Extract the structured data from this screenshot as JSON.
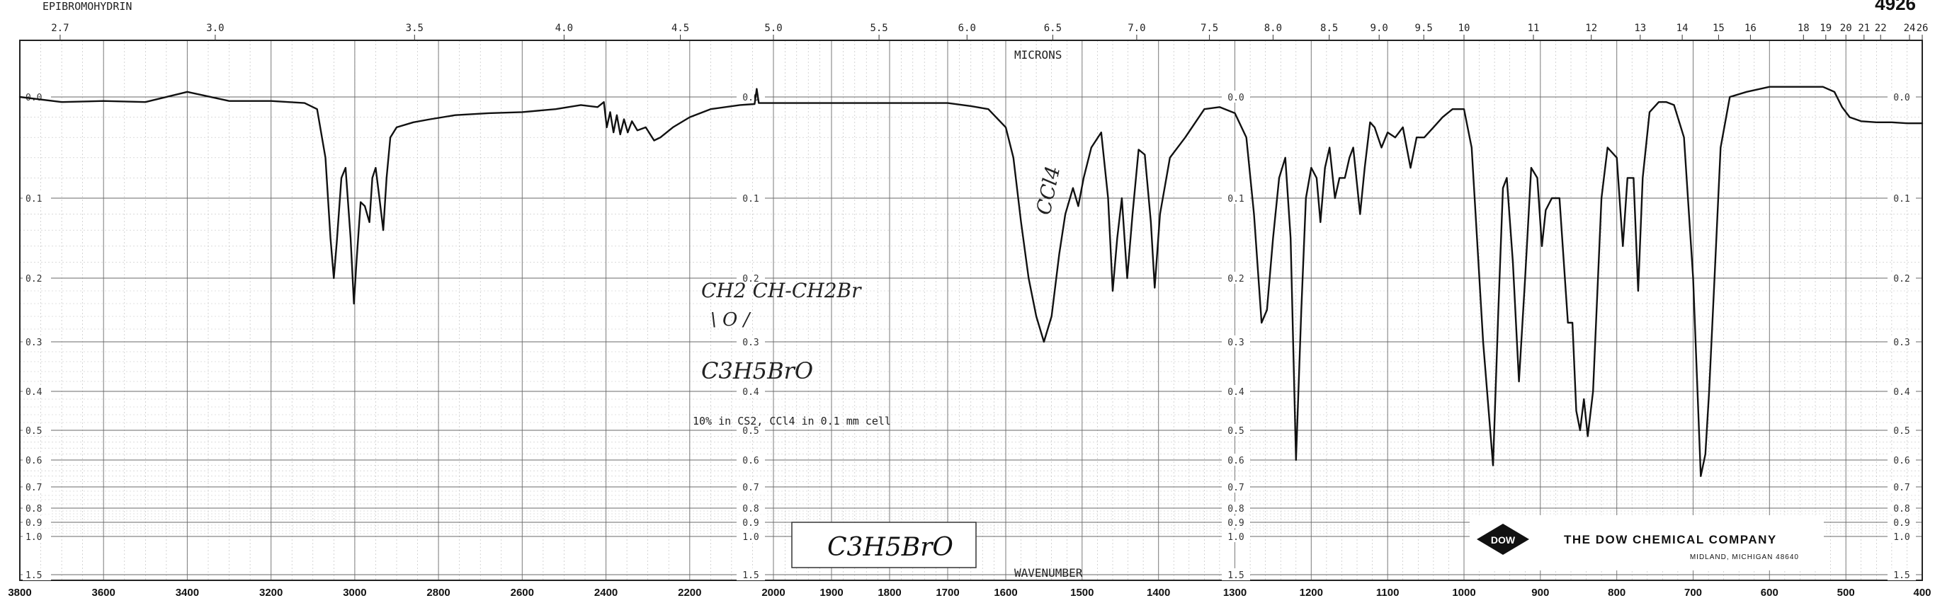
{
  "header": {
    "compound_title": "EPIBROMOHYDRIN",
    "spectrum_number": "4926"
  },
  "chart_data": {
    "type": "line",
    "title": "EPIBROMOHYDRIN",
    "xlabel": "WAVENUMBER",
    "x2label": "MICRONS",
    "ylabel": "",
    "x_axis_type": "wavenumber",
    "x_segments": [
      [
        3800,
        2000
      ],
      [
        2000,
        1600
      ],
      [
        1600,
        400
      ]
    ],
    "xlim": [
      3800,
      400
    ],
    "ylim": [
      0.0,
      1.5
    ],
    "y_scale": "absorbance (non-linear chart scale)",
    "grid": true,
    "wavenumber_ticks": [
      "3800",
      "3600",
      "3400",
      "3200",
      "3000",
      "2800",
      "2600",
      "2400",
      "2200",
      "2000",
      "1900",
      "1800",
      "1700",
      "1600",
      "1500",
      "1400",
      "1300",
      "1200",
      "1100",
      "1000",
      "900",
      "800",
      "700",
      "600",
      "500",
      "400"
    ],
    "micron_ticks": [
      "2.7",
      "3.0",
      "3.5",
      "4.0",
      "4.5",
      "5.0",
      "5.5",
      "6.0",
      "6.5",
      "7.0",
      "7.5",
      "8.0",
      "8.5",
      "9.0",
      "9.5",
      "10",
      "11",
      "12",
      "13",
      "14",
      "15",
      "16",
      "18",
      "19",
      "20",
      "21",
      "22",
      "24",
      "26"
    ],
    "absorbance_ticks": [
      "0.0",
      "0.1",
      "0.2",
      "0.3",
      "0.4",
      "0.5",
      "0.6",
      "0.7",
      "0.8",
      "0.9",
      "1.0",
      "1.5"
    ],
    "series": [
      {
        "color": "#111111",
        "points": [
          [
            3800,
            0.0
          ],
          [
            3700,
            0.005
          ],
          [
            3600,
            0.004
          ],
          [
            3500,
            0.005
          ],
          [
            3400,
            -0.005
          ],
          [
            3300,
            0.004
          ],
          [
            3200,
            0.004
          ],
          [
            3120,
            0.006
          ],
          [
            3090,
            0.012
          ],
          [
            3070,
            0.06
          ],
          [
            3058,
            0.15
          ],
          [
            3050,
            0.2
          ],
          [
            3043,
            0.155
          ],
          [
            3032,
            0.08
          ],
          [
            3022,
            0.07
          ],
          [
            3010,
            0.15
          ],
          [
            3002,
            0.24
          ],
          [
            2996,
            0.18
          ],
          [
            2986,
            0.105
          ],
          [
            2976,
            0.11
          ],
          [
            2965,
            0.13
          ],
          [
            2958,
            0.08
          ],
          [
            2950,
            0.07
          ],
          [
            2940,
            0.105
          ],
          [
            2932,
            0.14
          ],
          [
            2924,
            0.08
          ],
          [
            2915,
            0.04
          ],
          [
            2900,
            0.03
          ],
          [
            2860,
            0.025
          ],
          [
            2820,
            0.022
          ],
          [
            2760,
            0.018
          ],
          [
            2680,
            0.016
          ],
          [
            2600,
            0.015
          ],
          [
            2520,
            0.012
          ],
          [
            2460,
            0.008
          ],
          [
            2420,
            0.01
          ],
          [
            2405,
            0.005
          ],
          [
            2398,
            0.03
          ],
          [
            2390,
            0.015
          ],
          [
            2382,
            0.035
          ],
          [
            2374,
            0.018
          ],
          [
            2366,
            0.037
          ],
          [
            2357,
            0.022
          ],
          [
            2348,
            0.035
          ],
          [
            2338,
            0.024
          ],
          [
            2325,
            0.033
          ],
          [
            2305,
            0.03
          ],
          [
            2285,
            0.043
          ],
          [
            2270,
            0.04
          ],
          [
            2240,
            0.03
          ],
          [
            2200,
            0.02
          ],
          [
            2150,
            0.012
          ],
          [
            2080,
            0.008
          ],
          [
            2045,
            0.007
          ],
          [
            2040,
            -0.008
          ],
          [
            2035,
            0.006
          ],
          [
            2000,
            0.006
          ],
          [
            1950,
            0.006
          ],
          [
            1900,
            0.006
          ],
          [
            1850,
            0.006
          ],
          [
            1800,
            0.006
          ],
          [
            1750,
            0.006
          ],
          [
            1700,
            0.006
          ],
          [
            1660,
            0.009
          ],
          [
            1630,
            0.012
          ],
          [
            1600,
            0.03
          ],
          [
            1590,
            0.06
          ],
          [
            1580,
            0.13
          ],
          [
            1570,
            0.2
          ],
          [
            1560,
            0.26
          ],
          [
            1550,
            0.3
          ],
          [
            1540,
            0.26
          ],
          [
            1530,
            0.17
          ],
          [
            1522,
            0.12
          ],
          [
            1512,
            0.09
          ],
          [
            1505,
            0.11
          ],
          [
            1498,
            0.08
          ],
          [
            1488,
            0.05
          ],
          [
            1475,
            0.035
          ],
          [
            1466,
            0.1
          ],
          [
            1460,
            0.22
          ],
          [
            1454,
            0.15
          ],
          [
            1448,
            0.1
          ],
          [
            1441,
            0.2
          ],
          [
            1434,
            0.12
          ],
          [
            1426,
            0.052
          ],
          [
            1418,
            0.057
          ],
          [
            1410,
            0.13
          ],
          [
            1405,
            0.215
          ],
          [
            1398,
            0.12
          ],
          [
            1385,
            0.06
          ],
          [
            1365,
            0.04
          ],
          [
            1340,
            0.012
          ],
          [
            1320,
            0.01
          ],
          [
            1300,
            0.016
          ],
          [
            1285,
            0.04
          ],
          [
            1275,
            0.12
          ],
          [
            1265,
            0.27
          ],
          [
            1258,
            0.25
          ],
          [
            1250,
            0.15
          ],
          [
            1242,
            0.08
          ],
          [
            1234,
            0.06
          ],
          [
            1227,
            0.15
          ],
          [
            1220,
            0.6
          ],
          [
            1213,
            0.25
          ],
          [
            1207,
            0.1
          ],
          [
            1200,
            0.07
          ],
          [
            1193,
            0.08
          ],
          [
            1188,
            0.13
          ],
          [
            1182,
            0.07
          ],
          [
            1176,
            0.05
          ],
          [
            1169,
            0.1
          ],
          [
            1163,
            0.08
          ],
          [
            1156,
            0.08
          ],
          [
            1150,
            0.06
          ],
          [
            1145,
            0.05
          ],
          [
            1136,
            0.12
          ],
          [
            1130,
            0.07
          ],
          [
            1123,
            0.025
          ],
          [
            1117,
            0.03
          ],
          [
            1108,
            0.05
          ],
          [
            1100,
            0.035
          ],
          [
            1090,
            0.04
          ],
          [
            1080,
            0.03
          ],
          [
            1070,
            0.07
          ],
          [
            1062,
            0.04
          ],
          [
            1052,
            0.04
          ],
          [
            1040,
            0.03
          ],
          [
            1028,
            0.02
          ],
          [
            1015,
            0.012
          ],
          [
            1000,
            0.012
          ],
          [
            990,
            0.05
          ],
          [
            975,
            0.3
          ],
          [
            962,
            0.62
          ],
          [
            955,
            0.25
          ],
          [
            949,
            0.09
          ],
          [
            944,
            0.08
          ],
          [
            936,
            0.18
          ],
          [
            928,
            0.38
          ],
          [
            920,
            0.2
          ],
          [
            912,
            0.07
          ],
          [
            904,
            0.08
          ],
          [
            898,
            0.16
          ],
          [
            893,
            0.115
          ],
          [
            885,
            0.1
          ],
          [
            875,
            0.1
          ],
          [
            864,
            0.27
          ],
          [
            858,
            0.27
          ],
          [
            853,
            0.45
          ],
          [
            848,
            0.5
          ],
          [
            843,
            0.42
          ],
          [
            838,
            0.52
          ],
          [
            831,
            0.4
          ],
          [
            820,
            0.1
          ],
          [
            812,
            0.05
          ],
          [
            800,
            0.06
          ],
          [
            792,
            0.16
          ],
          [
            786,
            0.08
          ],
          [
            778,
            0.08
          ],
          [
            772,
            0.22
          ],
          [
            766,
            0.08
          ],
          [
            757,
            0.015
          ],
          [
            745,
            0.005
          ],
          [
            735,
            0.005
          ],
          [
            725,
            0.008
          ],
          [
            712,
            0.04
          ],
          [
            700,
            0.2
          ],
          [
            690,
            0.66
          ],
          [
            684,
            0.58
          ],
          [
            679,
            0.4
          ],
          [
            672,
            0.2
          ],
          [
            664,
            0.05
          ],
          [
            652,
            0.0
          ],
          [
            630,
            -0.005
          ],
          [
            600,
            -0.01
          ],
          [
            560,
            -0.01
          ],
          [
            530,
            -0.01
          ],
          [
            515,
            -0.005
          ],
          [
            505,
            0.01
          ],
          [
            495,
            0.02
          ],
          [
            480,
            0.024
          ],
          [
            460,
            0.025
          ],
          [
            440,
            0.025
          ],
          [
            420,
            0.026
          ],
          [
            400,
            0.026
          ]
        ]
      }
    ],
    "annotations": {
      "solvent_band_label": "CCl4",
      "structure_line1": "CH2 CH-CH2Br",
      "structure_line2": "\\ O /",
      "formula_handwritten": "C3H5BrO",
      "conditions": "10% in CS2, CCl4 in 0.1 mm cell",
      "formula_box": "C3H5BrO"
    }
  },
  "logo": {
    "emblem_text": "DOW",
    "company": "THE DOW CHEMICAL COMPANY",
    "location": "MIDLAND, MICHIGAN 48640"
  }
}
